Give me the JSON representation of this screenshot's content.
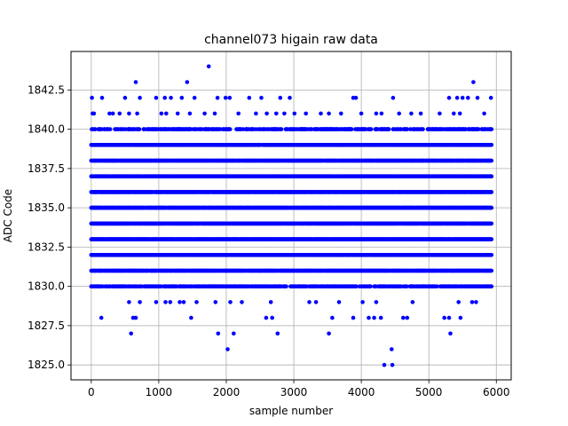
{
  "chart_data": {
    "type": "scatter",
    "title": "channel073 higain raw data",
    "xlabel": "sample number",
    "ylabel": "ADC Code",
    "xlim": [
      -300,
      6220
    ],
    "ylim": [
      1824.05,
      1844.95
    ],
    "xticks": [
      0,
      1000,
      2000,
      3000,
      4000,
      5000,
      6000
    ],
    "yticks": [
      1825.0,
      1827.5,
      1830.0,
      1832.5,
      1835.0,
      1837.5,
      1840.0,
      1842.5
    ],
    "xtick_labels": [
      "0",
      "1000",
      "2000",
      "3000",
      "4000",
      "5000",
      "6000"
    ],
    "ytick_labels": [
      "1825.0",
      "1827.5",
      "1830.0",
      "1832.5",
      "1835.0",
      "1837.5",
      "1840.0",
      "1842.5"
    ],
    "grid": true,
    "marker_color": "#0000ff",
    "n_samples": 5930,
    "dense_levels": [
      1831,
      1832,
      1833,
      1834,
      1835,
      1836,
      1837,
      1838,
      1839
    ],
    "medium_levels": [
      {
        "y": 1830,
        "density": 0.55
      },
      {
        "y": 1840,
        "density": 0.45
      }
    ],
    "sparse_points": [
      {
        "x": 10,
        "y": 1842
      },
      {
        "x": 20,
        "y": 1841
      },
      {
        "x": 40,
        "y": 1841
      },
      {
        "x": 160,
        "y": 1842
      },
      {
        "x": 270,
        "y": 1841
      },
      {
        "x": 320,
        "y": 1841
      },
      {
        "x": 420,
        "y": 1841
      },
      {
        "x": 500,
        "y": 1842
      },
      {
        "x": 560,
        "y": 1841
      },
      {
        "x": 660,
        "y": 1843
      },
      {
        "x": 680,
        "y": 1841
      },
      {
        "x": 720,
        "y": 1842
      },
      {
        "x": 960,
        "y": 1842
      },
      {
        "x": 1040,
        "y": 1841
      },
      {
        "x": 1090,
        "y": 1842
      },
      {
        "x": 1110,
        "y": 1841
      },
      {
        "x": 1180,
        "y": 1842
      },
      {
        "x": 1280,
        "y": 1841
      },
      {
        "x": 1340,
        "y": 1842
      },
      {
        "x": 1420,
        "y": 1843
      },
      {
        "x": 1460,
        "y": 1841
      },
      {
        "x": 1530,
        "y": 1842
      },
      {
        "x": 1680,
        "y": 1841
      },
      {
        "x": 1740,
        "y": 1844
      },
      {
        "x": 1830,
        "y": 1841
      },
      {
        "x": 1870,
        "y": 1842
      },
      {
        "x": 1990,
        "y": 1842
      },
      {
        "x": 2050,
        "y": 1842
      },
      {
        "x": 2180,
        "y": 1841
      },
      {
        "x": 2340,
        "y": 1842
      },
      {
        "x": 2440,
        "y": 1841
      },
      {
        "x": 2520,
        "y": 1842
      },
      {
        "x": 2600,
        "y": 1841
      },
      {
        "x": 2740,
        "y": 1841
      },
      {
        "x": 2800,
        "y": 1842
      },
      {
        "x": 2860,
        "y": 1841
      },
      {
        "x": 2940,
        "y": 1842
      },
      {
        "x": 3010,
        "y": 1841
      },
      {
        "x": 3180,
        "y": 1841
      },
      {
        "x": 3400,
        "y": 1841
      },
      {
        "x": 3520,
        "y": 1841
      },
      {
        "x": 3700,
        "y": 1841
      },
      {
        "x": 3880,
        "y": 1842
      },
      {
        "x": 3920,
        "y": 1842
      },
      {
        "x": 4000,
        "y": 1841
      },
      {
        "x": 4220,
        "y": 1841
      },
      {
        "x": 4300,
        "y": 1841
      },
      {
        "x": 4470,
        "y": 1842
      },
      {
        "x": 4560,
        "y": 1841
      },
      {
        "x": 4740,
        "y": 1841
      },
      {
        "x": 4880,
        "y": 1841
      },
      {
        "x": 5160,
        "y": 1841
      },
      {
        "x": 5300,
        "y": 1842
      },
      {
        "x": 5370,
        "y": 1841
      },
      {
        "x": 5420,
        "y": 1842
      },
      {
        "x": 5460,
        "y": 1841
      },
      {
        "x": 5500,
        "y": 1842
      },
      {
        "x": 5580,
        "y": 1842
      },
      {
        "x": 5660,
        "y": 1843
      },
      {
        "x": 5720,
        "y": 1842
      },
      {
        "x": 5820,
        "y": 1841
      },
      {
        "x": 5920,
        "y": 1842
      },
      {
        "x": 150,
        "y": 1828
      },
      {
        "x": 560,
        "y": 1829
      },
      {
        "x": 590,
        "y": 1827
      },
      {
        "x": 620,
        "y": 1828
      },
      {
        "x": 660,
        "y": 1828
      },
      {
        "x": 720,
        "y": 1829
      },
      {
        "x": 960,
        "y": 1829
      },
      {
        "x": 1100,
        "y": 1829
      },
      {
        "x": 1170,
        "y": 1829
      },
      {
        "x": 1310,
        "y": 1829
      },
      {
        "x": 1370,
        "y": 1829
      },
      {
        "x": 1480,
        "y": 1828
      },
      {
        "x": 1560,
        "y": 1829
      },
      {
        "x": 1840,
        "y": 1829
      },
      {
        "x": 1880,
        "y": 1827
      },
      {
        "x": 2020,
        "y": 1826
      },
      {
        "x": 2060,
        "y": 1829
      },
      {
        "x": 2110,
        "y": 1827
      },
      {
        "x": 2230,
        "y": 1829
      },
      {
        "x": 2590,
        "y": 1828
      },
      {
        "x": 2660,
        "y": 1829
      },
      {
        "x": 2680,
        "y": 1828
      },
      {
        "x": 2760,
        "y": 1827
      },
      {
        "x": 3230,
        "y": 1829
      },
      {
        "x": 3330,
        "y": 1829
      },
      {
        "x": 3520,
        "y": 1827
      },
      {
        "x": 3570,
        "y": 1828
      },
      {
        "x": 3670,
        "y": 1829
      },
      {
        "x": 3880,
        "y": 1828
      },
      {
        "x": 4020,
        "y": 1829
      },
      {
        "x": 4110,
        "y": 1828
      },
      {
        "x": 4190,
        "y": 1828
      },
      {
        "x": 4220,
        "y": 1829
      },
      {
        "x": 4290,
        "y": 1828
      },
      {
        "x": 4340,
        "y": 1825
      },
      {
        "x": 4450,
        "y": 1826
      },
      {
        "x": 4460,
        "y": 1825
      },
      {
        "x": 4620,
        "y": 1828
      },
      {
        "x": 4680,
        "y": 1828
      },
      {
        "x": 4760,
        "y": 1829
      },
      {
        "x": 5230,
        "y": 1828
      },
      {
        "x": 5300,
        "y": 1828
      },
      {
        "x": 5320,
        "y": 1827
      },
      {
        "x": 5440,
        "y": 1829
      },
      {
        "x": 5470,
        "y": 1828
      },
      {
        "x": 5640,
        "y": 1829
      },
      {
        "x": 5700,
        "y": 1829
      }
    ]
  }
}
